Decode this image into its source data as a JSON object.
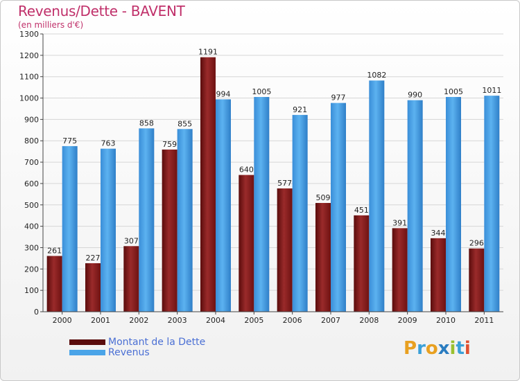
{
  "header": {
    "title": "Revenus/Dette - BAVENT",
    "subtitle": "(en milliers d'€)"
  },
  "legend": {
    "debt_label": "Montant de la Dette",
    "revenue_label": "Revenus"
  },
  "logo": {
    "letters": [
      "P",
      "r",
      "o",
      "x",
      "i",
      "t",
      "i"
    ],
    "colors": [
      "#e8a020",
      "#3aa0d8",
      "#e8a020",
      "#2a7cc0",
      "#9ac030",
      "#3aa0d8",
      "#e05030"
    ]
  },
  "colors": {
    "debt": "#8b1a1a",
    "revenue": "#4aa4e8",
    "title": "#c0306a",
    "legend_text": "#4a6fd4"
  },
  "chart_data": {
    "type": "bar",
    "categories": [
      "2000",
      "2001",
      "2002",
      "2003",
      "2004",
      "2005",
      "2006",
      "2007",
      "2008",
      "2009",
      "2010",
      "2011"
    ],
    "series": [
      {
        "name": "Montant de la Dette",
        "values": [
          261,
          227,
          307,
          759,
          1191,
          640,
          577,
          509,
          451,
          391,
          344,
          296
        ]
      },
      {
        "name": "Revenus",
        "values": [
          775,
          763,
          858,
          855,
          994,
          1005,
          921,
          977,
          1082,
          990,
          1005,
          1011
        ]
      }
    ],
    "title": "Revenus/Dette - BAVENT",
    "subtitle": "(en milliers d'€)",
    "ylim": [
      0,
      1300
    ],
    "yticks": [
      0,
      100,
      200,
      300,
      400,
      500,
      600,
      700,
      800,
      900,
      1000,
      1100,
      1200,
      1300
    ],
    "grid": true,
    "legend_position": "bottom-left"
  }
}
